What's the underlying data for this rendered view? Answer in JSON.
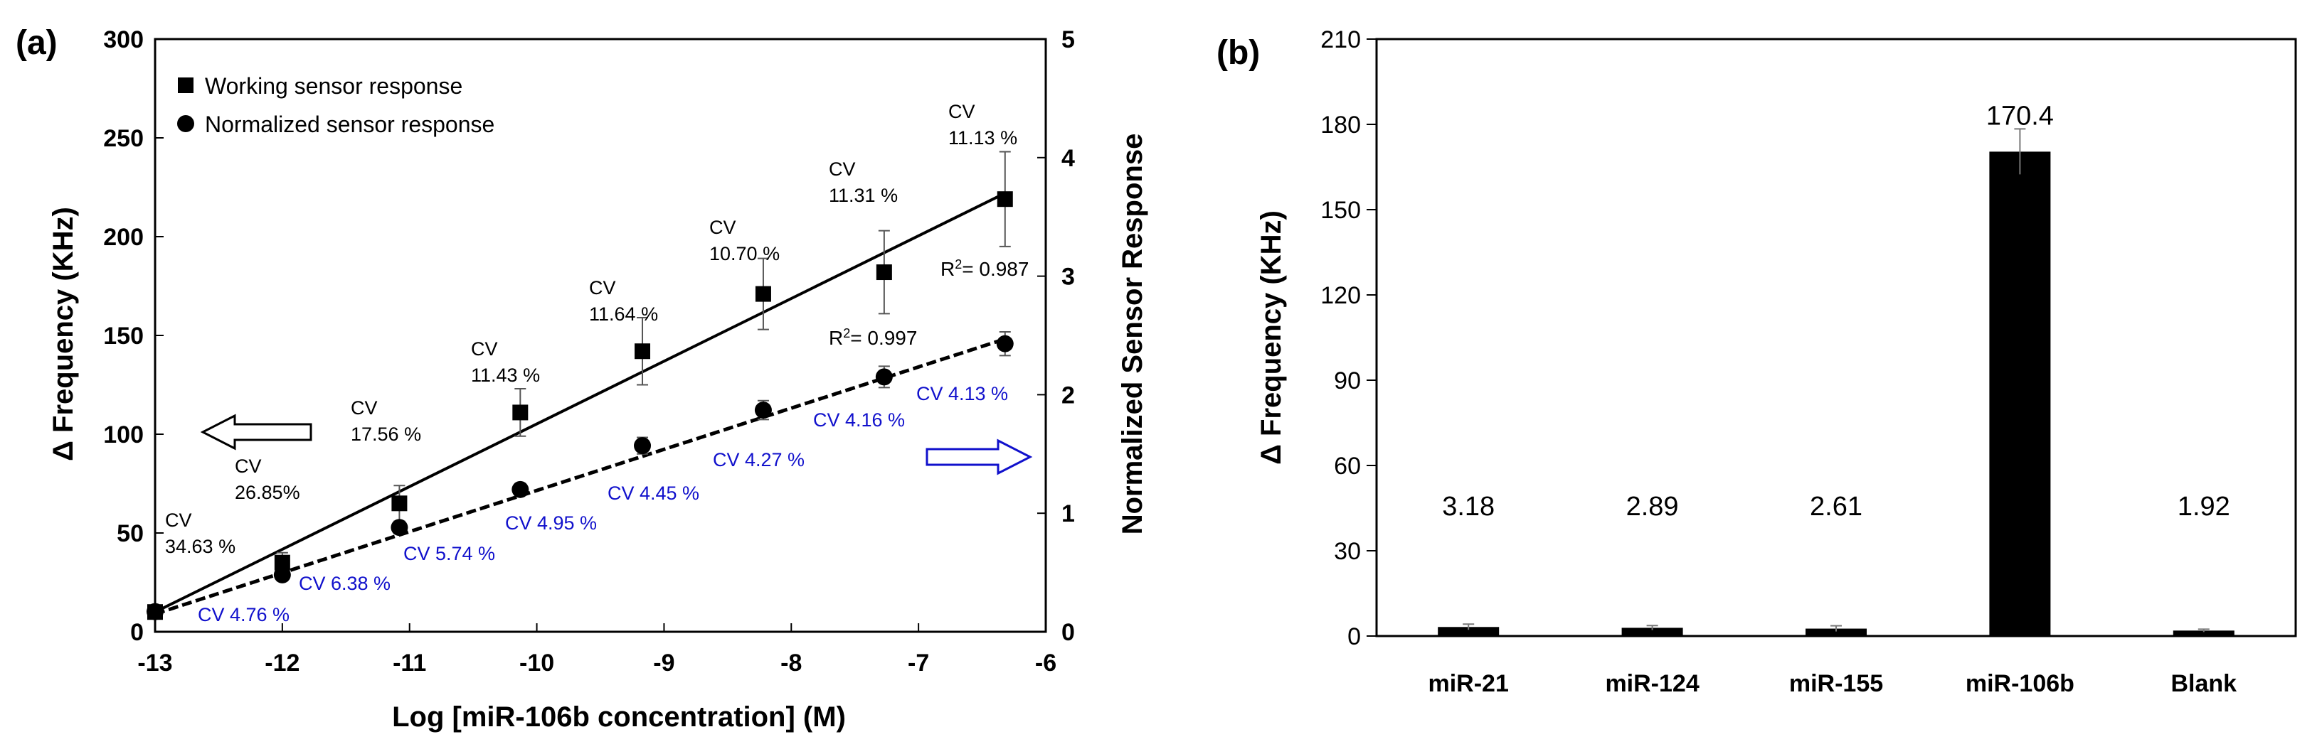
{
  "chart_data": [
    {
      "panel": "(a)",
      "type": "scatter",
      "xlabel": "Log [miR-106b concentration] (M)",
      "ylabel_left": "Δ Frequency (KHz)",
      "ylabel_right": "Normalized Sensor Response",
      "xlim": [
        -13,
        -6
      ],
      "ylim_left": [
        0,
        300
      ],
      "ylim_right": [
        0,
        5
      ],
      "x_ticks": [
        "-13",
        "-12",
        "-11",
        "-10",
        "-9",
        "-8",
        "-7",
        "-6"
      ],
      "y_left_ticks": [
        "0",
        "50",
        "100",
        "150",
        "200",
        "250",
        "300"
      ],
      "y_right_ticks": [
        "0",
        "1",
        "2",
        "3",
        "4",
        "5"
      ],
      "legend": [
        "Working sensor response",
        "Normalized sensor response"
      ],
      "series": [
        {
          "name": "Working sensor response",
          "axis": "left",
          "marker": "square",
          "x": [
            -13,
            -12,
            -11.08,
            -10.13,
            -9.17,
            -8.22,
            -7.27,
            -6.32
          ],
          "y": [
            10,
            35,
            65,
            111,
            142,
            171,
            182,
            219
          ],
          "err": [
            3,
            5,
            9,
            12,
            17,
            18,
            21,
            24
          ],
          "cv_label": "CV",
          "cv": [
            "34.63 %",
            "26.85%",
            "17.56 %",
            "11.43 %",
            "11.64 %",
            "10.70 %",
            "11.31 %",
            "11.13 %"
          ],
          "fit": {
            "x": [
              -13,
              -6.32
            ],
            "y": [
              10,
              222
            ]
          },
          "r2_prefix": "R",
          "r2_sup": "2",
          "r2_value": "= 0.987"
        },
        {
          "name": "Normalized sensor response",
          "axis": "right",
          "marker": "circle",
          "x": [
            -13,
            -12,
            -11.08,
            -10.13,
            -9.17,
            -8.22,
            -7.27,
            -6.32
          ],
          "y": [
            0.17,
            0.48,
            0.88,
            1.2,
            1.57,
            1.87,
            2.15,
            2.43
          ],
          "err": [
            0.03,
            0.05,
            0.05,
            0.05,
            0.07,
            0.08,
            0.09,
            0.1
          ],
          "cv": [
            "CV 4.76 %",
            "CV 6.38 %",
            "CV 5.74 %",
            "CV 4.95 %",
            "CV 4.45 %",
            "CV 4.27 %",
            "CV 4.16 %",
            "CV 4.13 %"
          ],
          "fit": {
            "x": [
              -13,
              -6.32
            ],
            "y": [
              0.15,
              2.47
            ]
          },
          "r2_prefix": "R",
          "r2_sup": "2",
          "r2_value": "= 0.997"
        }
      ]
    },
    {
      "panel": "(b)",
      "type": "bar",
      "ylabel": "Δ Frequency (KHz)",
      "ylim": [
        0,
        210
      ],
      "y_ticks": [
        "0",
        "30",
        "60",
        "90",
        "120",
        "150",
        "180",
        "210"
      ],
      "categories": [
        "miR-21",
        "miR-124",
        "miR-155",
        "miR-106b",
        "Blank"
      ],
      "values": [
        3.18,
        2.89,
        2.61,
        170.4,
        1.92
      ],
      "value_labels": [
        "3.18",
        "2.89",
        "2.61",
        "170.4",
        "1.92"
      ],
      "err": [
        1.0,
        0.8,
        1.0,
        8,
        0.5
      ],
      "colors": {
        "bar": "#000000",
        "cv_blue": "#1111cc"
      }
    }
  ]
}
